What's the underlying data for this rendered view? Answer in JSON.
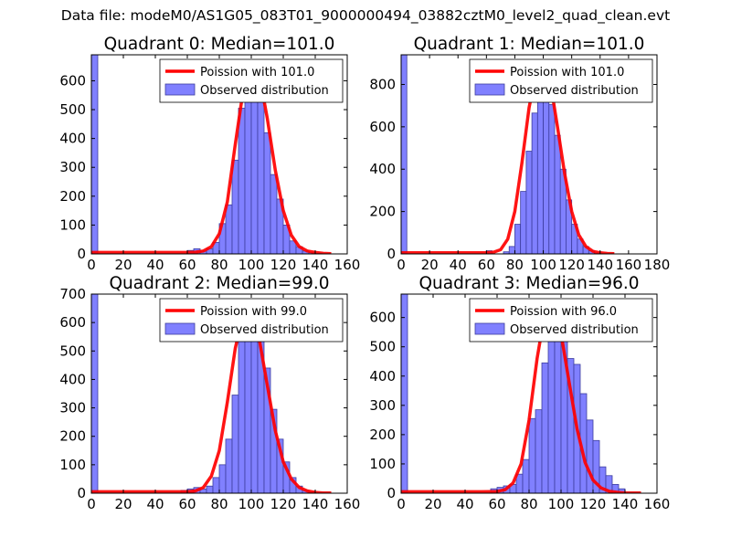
{
  "figure": {
    "suptitle": "Data file: modeM0/AS1G05_083T01_9000000494_03882cztM0_level2_quad_clean.evt"
  },
  "colors": {
    "bar_fill": "#8080ff",
    "bar_edge": "#3d3d9e",
    "poisson_line": "#ff0000",
    "legend_edge": "#000000"
  },
  "chart_data": [
    {
      "type": "bar",
      "title": "Quadrant 0: Median=101.0",
      "xlim": [
        0,
        160
      ],
      "ylim": [
        0,
        690
      ],
      "xticks": [
        "0",
        "20",
        "40",
        "60",
        "80",
        "100",
        "120",
        "140",
        "160"
      ],
      "yticks": [
        "0",
        "100",
        "200",
        "300",
        "400",
        "500",
        "600"
      ],
      "bin_width": 4,
      "bins": [
        [
          0,
          690
        ],
        [
          60,
          12
        ],
        [
          64,
          18
        ],
        [
          68,
          10
        ],
        [
          72,
          18
        ],
        [
          76,
          40
        ],
        [
          80,
          105
        ],
        [
          84,
          170
        ],
        [
          88,
          325
        ],
        [
          92,
          505
        ],
        [
          96,
          600
        ],
        [
          100,
          635
        ],
        [
          104,
          580
        ],
        [
          108,
          420
        ],
        [
          112,
          275
        ],
        [
          116,
          190
        ],
        [
          120,
          100
        ],
        [
          124,
          45
        ],
        [
          128,
          25
        ],
        [
          132,
          10
        ],
        [
          136,
          5
        ],
        [
          140,
          2
        ]
      ],
      "line": {
        "x": [
          0,
          5,
          10,
          20,
          30,
          40,
          50,
          60,
          65,
          70,
          75,
          80,
          85,
          90,
          95,
          100,
          105,
          110,
          115,
          120,
          125,
          130,
          135,
          140,
          145,
          150
        ],
        "y": [
          5,
          5,
          5,
          5,
          5,
          5,
          5,
          5,
          6,
          10,
          25,
          70,
          180,
          380,
          570,
          655,
          620,
          470,
          290,
          150,
          65,
          25,
          10,
          5,
          2,
          1
        ]
      },
      "legend": [
        "Poission with 101.0",
        "Observed distribution"
      ]
    },
    {
      "type": "bar",
      "title": "Quadrant 1: Median=101.0",
      "xlim": [
        0,
        180
      ],
      "ylim": [
        0,
        940
      ],
      "xticks": [
        "0",
        "20",
        "40",
        "60",
        "80",
        "100",
        "120",
        "140",
        "160",
        "180"
      ],
      "yticks": [
        "0",
        "200",
        "400",
        "600",
        "800"
      ],
      "bin_width": 4,
      "bins": [
        [
          0,
          940
        ],
        [
          60,
          15
        ],
        [
          72,
          10
        ],
        [
          76,
          35
        ],
        [
          80,
          140
        ],
        [
          84,
          295
        ],
        [
          88,
          485
        ],
        [
          92,
          665
        ],
        [
          96,
          790
        ],
        [
          100,
          780
        ],
        [
          104,
          705
        ],
        [
          108,
          560
        ],
        [
          112,
          400
        ],
        [
          116,
          255
        ],
        [
          120,
          140
        ],
        [
          124,
          70
        ],
        [
          128,
          35
        ],
        [
          132,
          15
        ],
        [
          136,
          5
        ]
      ],
      "line": {
        "x": [
          0,
          5,
          10,
          20,
          30,
          40,
          50,
          60,
          65,
          70,
          75,
          80,
          85,
          90,
          95,
          100,
          105,
          110,
          115,
          120,
          125,
          130,
          135,
          140,
          145,
          150
        ],
        "y": [
          5,
          5,
          5,
          5,
          5,
          5,
          5,
          5,
          8,
          20,
          70,
          200,
          430,
          690,
          860,
          895,
          810,
          600,
          380,
          200,
          90,
          35,
          12,
          5,
          2,
          1
        ]
      },
      "legend": [
        "Poission with 101.0",
        "Observed distribution"
      ]
    },
    {
      "type": "bar",
      "title": "Quadrant 2: Median=99.0",
      "xlim": [
        0,
        160
      ],
      "ylim": [
        0,
        700
      ],
      "xticks": [
        "0",
        "20",
        "40",
        "60",
        "80",
        "100",
        "120",
        "140",
        "160"
      ],
      "yticks": [
        "0",
        "100",
        "200",
        "300",
        "400",
        "500",
        "600",
        "700"
      ],
      "bin_width": 4,
      "bins": [
        [
          0,
          700
        ],
        [
          56,
          10
        ],
        [
          60,
          15
        ],
        [
          64,
          20
        ],
        [
          68,
          15
        ],
        [
          72,
          25
        ],
        [
          76,
          55
        ],
        [
          80,
          100
        ],
        [
          84,
          190
        ],
        [
          88,
          345
        ],
        [
          92,
          565
        ],
        [
          96,
          600
        ],
        [
          100,
          660
        ],
        [
          104,
          585
        ],
        [
          108,
          440
        ],
        [
          112,
          295
        ],
        [
          116,
          190
        ],
        [
          120,
          110
        ],
        [
          124,
          55
        ],
        [
          128,
          25
        ],
        [
          132,
          10
        ],
        [
          136,
          5
        ]
      ],
      "line": {
        "x": [
          0,
          5,
          10,
          20,
          30,
          40,
          50,
          60,
          65,
          70,
          75,
          80,
          85,
          90,
          95,
          100,
          105,
          110,
          115,
          120,
          125,
          130,
          135,
          140,
          145,
          150
        ],
        "y": [
          5,
          5,
          5,
          5,
          5,
          5,
          5,
          5,
          8,
          20,
          60,
          150,
          320,
          510,
          630,
          640,
          540,
          380,
          220,
          110,
          50,
          20,
          8,
          3,
          1,
          1
        ]
      },
      "legend": [
        "Poission with 99.0",
        "Observed distribution"
      ]
    },
    {
      "type": "bar",
      "title": "Quadrant 3: Median=96.0",
      "xlim": [
        0,
        160
      ],
      "ylim": [
        0,
        680
      ],
      "xticks": [
        "0",
        "20",
        "40",
        "60",
        "80",
        "100",
        "120",
        "140",
        "160"
      ],
      "yticks": [
        "0",
        "100",
        "200",
        "300",
        "400",
        "500",
        "600"
      ],
      "bin_width": 4,
      "bins": [
        [
          0,
          680
        ],
        [
          56,
          15
        ],
        [
          60,
          20
        ],
        [
          64,
          25
        ],
        [
          68,
          30
        ],
        [
          72,
          65
        ],
        [
          76,
          115
        ],
        [
          80,
          255
        ],
        [
          84,
          285
        ],
        [
          88,
          445
        ],
        [
          92,
          550
        ],
        [
          96,
          650
        ],
        [
          100,
          555
        ],
        [
          104,
          460
        ],
        [
          108,
          440
        ],
        [
          112,
          340
        ],
        [
          116,
          250
        ],
        [
          120,
          180
        ],
        [
          124,
          90
        ],
        [
          128,
          60
        ],
        [
          132,
          30
        ],
        [
          136,
          15
        ]
      ],
      "line": {
        "x": [
          0,
          5,
          10,
          20,
          30,
          40,
          50,
          60,
          65,
          70,
          75,
          80,
          85,
          90,
          95,
          100,
          105,
          110,
          115,
          120,
          125,
          130,
          135,
          140,
          145,
          150
        ],
        "y": [
          5,
          5,
          5,
          5,
          5,
          5,
          5,
          6,
          12,
          35,
          100,
          250,
          460,
          620,
          650,
          545,
          380,
          220,
          105,
          45,
          18,
          7,
          3,
          1,
          1,
          1
        ]
      },
      "legend": [
        "Poission with 96.0",
        "Observed distribution"
      ]
    }
  ]
}
